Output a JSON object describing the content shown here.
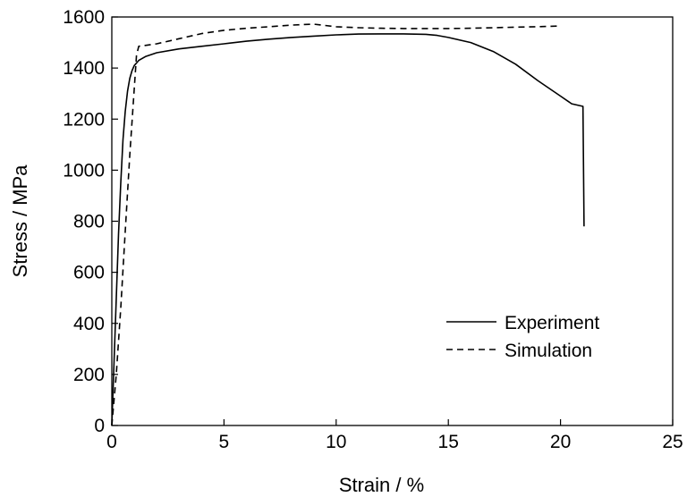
{
  "chart_data": {
    "type": "line",
    "title": "",
    "xlabel": "Strain / %",
    "ylabel": "Stress / MPa",
    "xlim": [
      0,
      25
    ],
    "ylim": [
      0,
      1600
    ],
    "x_ticks": [
      0,
      5,
      10,
      15,
      20,
      25
    ],
    "y_ticks": [
      0,
      200,
      400,
      600,
      800,
      1000,
      1200,
      1400,
      1600
    ],
    "x_tick_labels": [
      "0",
      "5",
      "10",
      "15",
      "20",
      "25"
    ],
    "y_tick_labels": [
      "0",
      "200",
      "400",
      "600",
      "800",
      "1000",
      "1200",
      "1400",
      "1600"
    ],
    "grid": false,
    "legend_position": "lower-right",
    "colors": {
      "line": "#000000",
      "axis": "#000000"
    },
    "series": [
      {
        "name": "Experiment",
        "style": "solid",
        "x": [
          0,
          0.1,
          0.2,
          0.3,
          0.4,
          0.5,
          0.6,
          0.7,
          0.8,
          0.9,
          1.0,
          1.2,
          1.5,
          2,
          3,
          4,
          5,
          6,
          7,
          8,
          9,
          10,
          11,
          12,
          13,
          14,
          14.5,
          15,
          16,
          17,
          18,
          19,
          20,
          20.5,
          21,
          21.05
        ],
        "y": [
          0,
          250,
          500,
          750,
          950,
          1120,
          1230,
          1310,
          1360,
          1390,
          1410,
          1430,
          1445,
          1460,
          1475,
          1485,
          1495,
          1505,
          1513,
          1520,
          1525,
          1530,
          1533,
          1534,
          1534,
          1532,
          1528,
          1520,
          1500,
          1465,
          1415,
          1350,
          1290,
          1260,
          1250,
          780
        ]
      },
      {
        "name": "Simulation",
        "style": "dashed",
        "x": [
          0,
          0.2,
          0.4,
          0.6,
          0.8,
          1.0,
          1.1,
          1.2,
          2,
          3,
          4,
          5,
          6,
          7,
          8,
          9,
          10,
          11,
          12,
          13,
          14,
          15,
          16,
          17,
          18,
          19,
          20
        ],
        "y": [
          0,
          200,
          460,
          760,
          1060,
          1320,
          1450,
          1485,
          1495,
          1515,
          1535,
          1548,
          1556,
          1562,
          1568,
          1572,
          1562,
          1558,
          1556,
          1555,
          1555,
          1555,
          1556,
          1558,
          1560,
          1562,
          1565
        ]
      }
    ]
  }
}
